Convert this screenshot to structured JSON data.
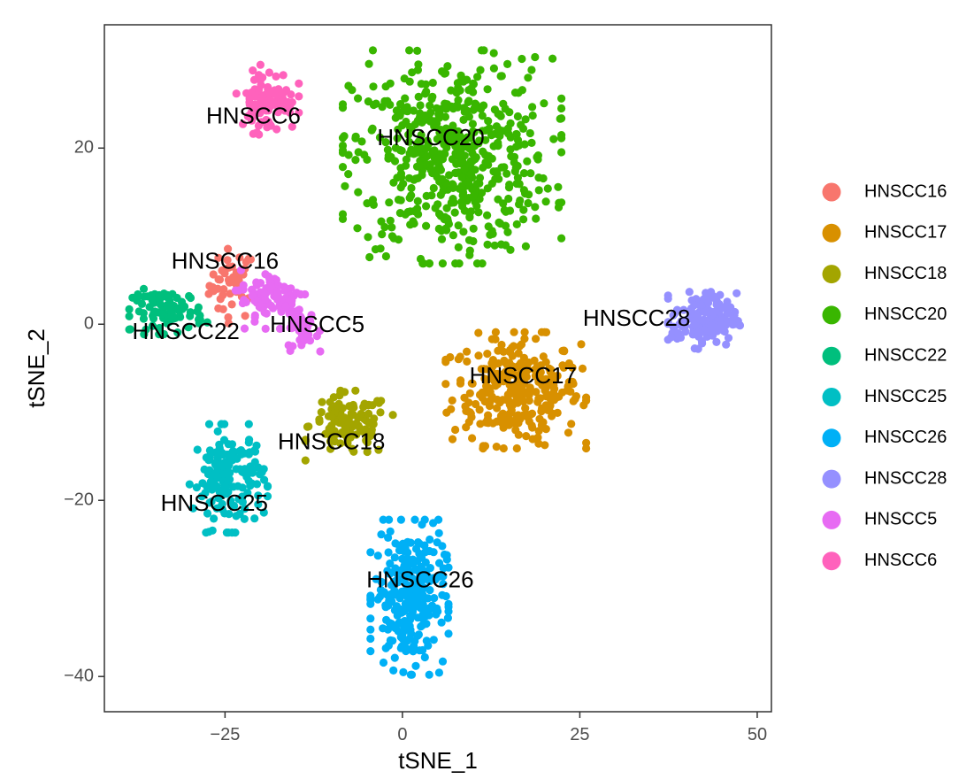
{
  "chart_data": {
    "type": "scatter",
    "xlabel": "tSNE_1",
    "ylabel": "tSNE_2",
    "xlim": [
      -42,
      52
    ],
    "ylim": [
      -44,
      34
    ],
    "x_ticks": [
      -25,
      0,
      25,
      50
    ],
    "y_ticks": [
      -40,
      -20,
      0,
      20
    ],
    "x_tick_labels": [
      "−25",
      "0",
      "25",
      "50"
    ],
    "y_tick_labels": [
      "−40",
      "−20",
      "0",
      "20"
    ],
    "grid": false,
    "legend_position": "right",
    "series": [
      {
        "name": "HNSCC16",
        "color": "#F8766D",
        "label_pos": [
          -25,
          7
        ],
        "clusters": [
          {
            "cx": -24,
            "cy": 4.5,
            "sx": 1.6,
            "sy": 2,
            "n": 45
          }
        ]
      },
      {
        "name": "HNSCC17",
        "color": "#D89000",
        "label_pos": [
          17,
          -6
        ],
        "clusters": [
          {
            "cx": 16,
            "cy": -7.5,
            "sx": 4.5,
            "sy": 3,
            "n": 300
          }
        ]
      },
      {
        "name": "HNSCC18",
        "color": "#A3A500",
        "label_pos": [
          -10,
          -13.5
        ],
        "clusters": [
          {
            "cx": -7.5,
            "cy": -11.5,
            "sx": 2.8,
            "sy": 1.8,
            "n": 110
          }
        ]
      },
      {
        "name": "HNSCC20",
        "color": "#39B600",
        "label_pos": [
          4,
          21
        ],
        "clusters": [
          {
            "cx": 7,
            "cy": 19,
            "sx": 7,
            "sy": 5.5,
            "n": 560
          }
        ]
      },
      {
        "name": "HNSCC22",
        "color": "#00BF7D",
        "label_pos": [
          -30.5,
          -1
        ],
        "clusters": [
          {
            "cx": -33,
            "cy": 1.5,
            "sx": 2.5,
            "sy": 1.2,
            "n": 85
          }
        ]
      },
      {
        "name": "HNSCC25",
        "color": "#00BFC4",
        "label_pos": [
          -26.5,
          -20.5
        ],
        "clusters": [
          {
            "cx": -24.5,
            "cy": -17.5,
            "sx": 2.5,
            "sy": 2.8,
            "n": 160
          }
        ]
      },
      {
        "name": "HNSCC26",
        "color": "#00B0F6",
        "label_pos": [
          2.5,
          -29.2
        ],
        "clusters": [
          {
            "cx": 1,
            "cy": -31,
            "sx": 2.5,
            "sy": 4,
            "n": 270
          }
        ]
      },
      {
        "name": "HNSCC28",
        "color": "#9590FF",
        "label_pos": [
          33,
          0.5
        ],
        "clusters": [
          {
            "cx": 42.5,
            "cy": 0.5,
            "sx": 2.3,
            "sy": 1.5,
            "n": 150
          }
        ]
      },
      {
        "name": "HNSCC5",
        "color": "#E76BF3",
        "label_pos": [
          -12,
          -0.2
        ],
        "clusters": [
          {
            "cx": -18,
            "cy": 3,
            "sx": 2.5,
            "sy": 1.6,
            "n": 90
          },
          {
            "cx": -14,
            "cy": -0.5,
            "sx": 1.1,
            "sy": 1.2,
            "n": 40
          }
        ]
      },
      {
        "name": "HNSCC6",
        "color": "#FF62BC",
        "label_pos": [
          -21,
          23.5
        ],
        "clusters": [
          {
            "cx": -19,
            "cy": 25.5,
            "sx": 2,
            "sy": 1.8,
            "n": 95
          }
        ]
      }
    ]
  }
}
